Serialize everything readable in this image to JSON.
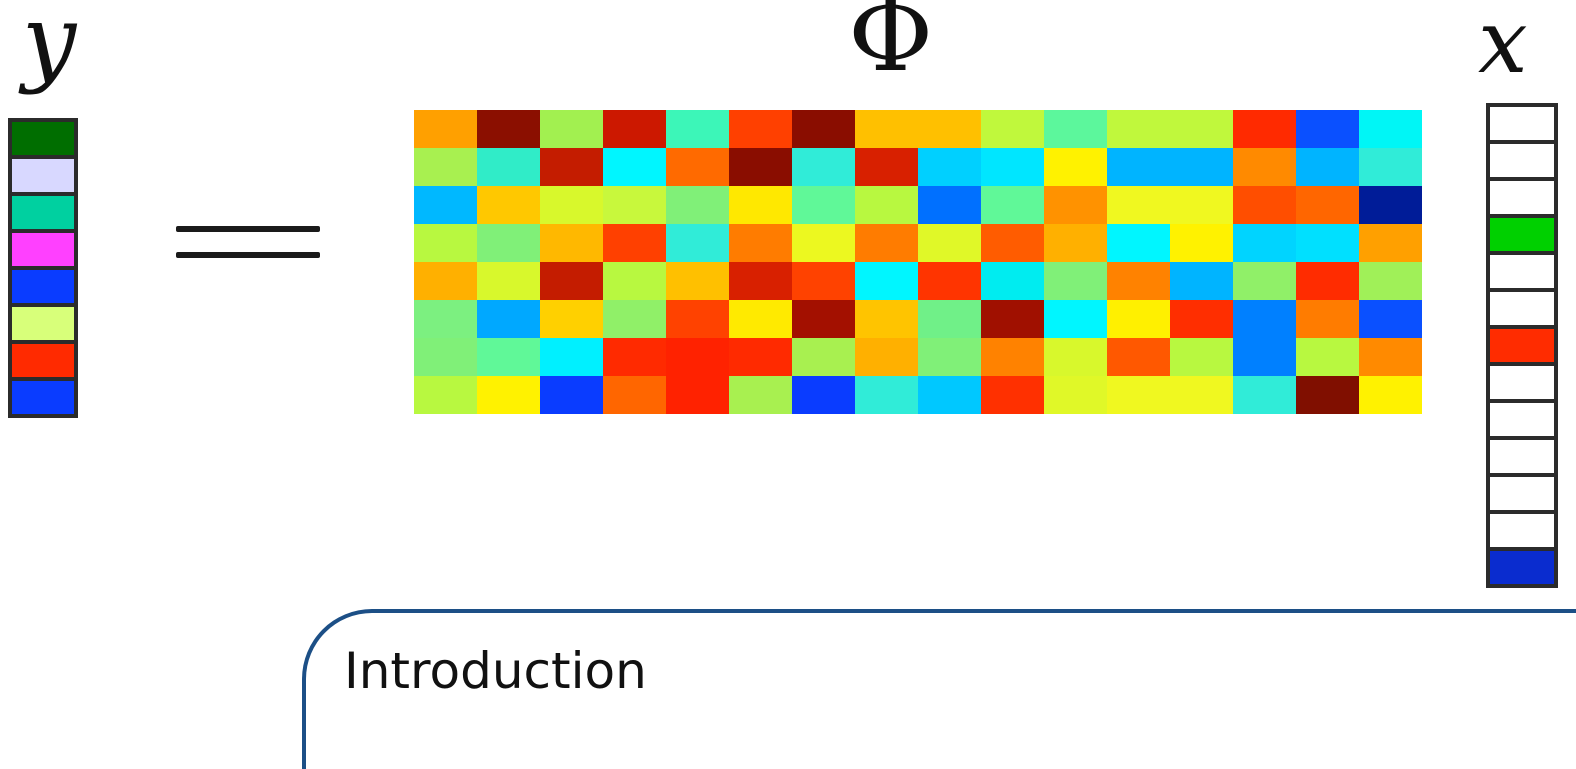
{
  "symbols": {
    "y": "y",
    "phi": "Φ",
    "x": "x"
  },
  "equals_sign": "=",
  "y_vector": [
    "#006e00",
    "#d8d8ff",
    "#00d0a0",
    "#ff40ff",
    "#0a3cff",
    "#d8ff7a",
    "#ff2a00",
    "#0a3cff"
  ],
  "phi_matrix": [
    [
      "#ffa000",
      "#8b0f00",
      "#a2f050",
      "#cc1800",
      "#3cf6b8",
      "#ff4000",
      "#8a0d00",
      "#ffc000",
      "#ffc000",
      "#c0f83c",
      "#5cf79c",
      "#c0f83c",
      "#c0f83c",
      "#ff2a00",
      "#0a50ff",
      "#00f6f6"
    ],
    [
      "#a8f050",
      "#30ecc8",
      "#c41c00",
      "#00f6ff",
      "#ff6a00",
      "#8a0d00",
      "#30ecd8",
      "#d82000",
      "#00d0ff",
      "#00e6ff",
      "#fff200",
      "#00b4ff",
      "#00b4ff",
      "#ff8a00",
      "#00b4ff",
      "#30ecd8"
    ],
    [
      "#00b8ff",
      "#ffc800",
      "#d8f82c",
      "#c8f83c",
      "#80f078",
      "#ffe800",
      "#60f898",
      "#b8f840",
      "#0070ff",
      "#60f898",
      "#ff9200",
      "#f0f820",
      "#f0f820",
      "#ff4e00",
      "#ff6600",
      "#001c98"
    ],
    [
      "#b8f840",
      "#80f078",
      "#ffb800",
      "#ff4000",
      "#30ecd8",
      "#ff7c00",
      "#ecf820",
      "#ff7c00",
      "#e0f828",
      "#ff5c00",
      "#ffb000",
      "#00f6ff",
      "#fff200",
      "#00d4ff",
      "#00e0ff",
      "#ffa000"
    ],
    [
      "#ffb000",
      "#d8f82c",
      "#c41c00",
      "#b8f840",
      "#ffc000",
      "#d82000",
      "#ff4200",
      "#00f6ff",
      "#ff3400",
      "#00ecf0",
      "#80f078",
      "#ff8200",
      "#00b4ff",
      "#90f068",
      "#ff2c00",
      "#a0f058"
    ],
    [
      "#7cf080",
      "#00a8ff",
      "#ffd000",
      "#90f068",
      "#ff4200",
      "#ffea00",
      "#a31000",
      "#ffc400",
      "#70f088",
      "#a01000",
      "#00f6ff",
      "#fff000",
      "#ff2e00",
      "#0080ff",
      "#ff7c00",
      "#0a50ff"
    ],
    [
      "#80f078",
      "#60f898",
      "#00f0ff",
      "#ff2a00",
      "#ff2200",
      "#ff2a00",
      "#a8f050",
      "#ffb000",
      "#80f078",
      "#ff8200",
      "#d8f82c",
      "#ff5800",
      "#b8f840",
      "#0080ff",
      "#b8f840",
      "#ff8a00"
    ],
    [
      "#b8f840",
      "#fff200",
      "#0a3cff",
      "#ff6600",
      "#ff2200",
      "#a8f050",
      "#0a3cff",
      "#30ecd8",
      "#00c8ff",
      "#ff3000",
      "#e0f828",
      "#f0f820",
      "#f0f820",
      "#30ecd8",
      "#800f00",
      "#fff200"
    ]
  ],
  "x_vector": [
    "#ffffff",
    "#ffffff",
    "#ffffff",
    "#00d000",
    "#ffffff",
    "#ffffff",
    "#ff2c00",
    "#ffffff",
    "#ffffff",
    "#ffffff",
    "#ffffff",
    "#ffffff",
    "#0a2ccf"
  ],
  "x_vector_faded_count": 3,
  "section": {
    "title": "Introduction",
    "accent_color": "#1c4f86"
  }
}
